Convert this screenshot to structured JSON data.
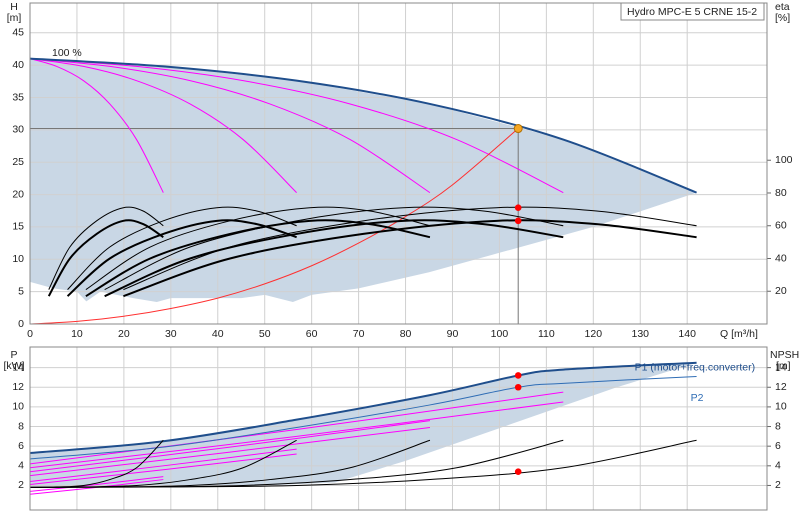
{
  "chart_data": [
    {
      "type": "line",
      "title": "Hydro MPC-E 5 CRNE 15-2",
      "ylabel": "H",
      "yunit": "[m]",
      "y2label": "eta",
      "y2unit": "[%]",
      "xlabel": "Q [m³/h]",
      "annotation": "100 %",
      "xlim": [
        0,
        157
      ],
      "xticks": [
        0,
        10,
        20,
        30,
        40,
        50,
        60,
        70,
        80,
        90,
        100,
        110,
        120,
        130,
        140
      ],
      "ylim": [
        0,
        49.6
      ],
      "yticks": [
        0,
        5,
        10,
        15,
        20,
        25,
        30,
        35,
        40,
        45
      ],
      "y2lim": [
        0,
        196
      ],
      "y2ticks": [
        20,
        40,
        60,
        80,
        100
      ],
      "grid": true,
      "areas": [
        {
          "color": "#c9d7e5",
          "x": [
            0,
            28.4,
            56.8,
            85.2,
            113.6,
            142,
            120,
            100,
            85,
            70,
            60,
            56,
            50,
            45,
            30,
            27,
            22,
            15,
            12,
            10,
            5,
            0
          ],
          "values": [
            41,
            39.8,
            37.6,
            34,
            28.5,
            20.3,
            15,
            11,
            8,
            5.5,
            4.5,
            3.4,
            4.5,
            4,
            4,
            3.4,
            4,
            5,
            3.5,
            5,
            5.5,
            6.5
          ]
        }
      ],
      "series": [
        {
          "color": "#ff00ff",
          "weight": "thin",
          "x": [
            0,
            5.7,
            11.4,
            17.0,
            22.7,
            28.4
          ],
          "values": [
            41,
            39.8,
            37.6,
            34,
            28.5,
            20.3
          ]
        },
        {
          "color": "#ff00ff",
          "weight": "thin",
          "x": [
            0,
            11.4,
            22.7,
            34.1,
            45.4,
            56.8
          ],
          "values": [
            41,
            39.8,
            37.6,
            34,
            28.5,
            20.3
          ]
        },
        {
          "color": "#ff00ff",
          "weight": "thin",
          "x": [
            0,
            17.0,
            34.1,
            51.1,
            68.2,
            85.2
          ],
          "values": [
            41,
            39.8,
            37.6,
            34,
            28.5,
            20.3
          ]
        },
        {
          "color": "#ff00ff",
          "weight": "thin",
          "x": [
            0,
            22.7,
            45.4,
            68.2,
            90.9,
            113.6
          ],
          "values": [
            41,
            39.8,
            37.6,
            34,
            28.5,
            20.3
          ]
        },
        {
          "color": "#1f4e8c",
          "weight": "bold",
          "x": [
            0,
            28.4,
            56.8,
            85.2,
            113.6,
            142
          ],
          "values": [
            41,
            39.8,
            37.6,
            34,
            28.5,
            20.3
          ]
        },
        {
          "color": "#ff3030",
          "weight": "thin",
          "x": [
            0,
            10,
            20,
            30,
            40,
            50,
            60,
            70,
            80,
            90,
            104
          ],
          "values": [
            0,
            0.4,
            1.2,
            2.4,
            4,
            6.2,
            9,
            12.5,
            16.6,
            21.5,
            30.2
          ]
        },
        {
          "color": "#000000",
          "weight": "thin",
          "axis": "y2",
          "x": [
            4.0,
            8.5,
            14.2,
            19.9,
            24.1,
            28.4
          ],
          "values": [
            21,
            47,
            63,
            71,
            69,
            60
          ]
        },
        {
          "color": "#000000",
          "weight": "thin",
          "axis": "y2",
          "x": [
            8.0,
            17.0,
            28.4,
            39.8,
            48.3,
            56.8
          ],
          "values": [
            21,
            47,
            63,
            71,
            69,
            60
          ]
        },
        {
          "color": "#000000",
          "weight": "thin",
          "axis": "y2",
          "x": [
            11.9,
            25.6,
            42.6,
            59.6,
            72.4,
            85.2
          ],
          "values": [
            21,
            47,
            63,
            71,
            69,
            60
          ]
        },
        {
          "color": "#000000",
          "weight": "thin",
          "axis": "y2",
          "x": [
            15.9,
            34.1,
            56.8,
            79.5,
            96.6,
            113.6
          ],
          "values": [
            21,
            47,
            63,
            71,
            69,
            60
          ]
        },
        {
          "color": "#000000",
          "weight": "thin",
          "axis": "y2",
          "x": [
            19.9,
            42.6,
            71.0,
            99.4,
            120.7,
            142
          ],
          "values": [
            21,
            47,
            63,
            71,
            69,
            60
          ]
        },
        {
          "color": "#000000",
          "weight": "bold",
          "axis": "y2",
          "x": [
            4.0,
            8.5,
            14.2,
            19.9,
            24.1,
            28.4
          ],
          "values": [
            17,
            40,
            55,
            63,
            61,
            53
          ]
        },
        {
          "color": "#000000",
          "weight": "bold",
          "axis": "y2",
          "x": [
            8.0,
            17.0,
            28.4,
            39.8,
            48.3,
            56.8
          ],
          "values": [
            17,
            40,
            55,
            63,
            61,
            53
          ]
        },
        {
          "color": "#000000",
          "weight": "bold",
          "axis": "y2",
          "x": [
            11.9,
            25.6,
            42.6,
            59.6,
            72.4,
            85.2
          ],
          "values": [
            17,
            40,
            55,
            63,
            61,
            53
          ]
        },
        {
          "color": "#000000",
          "weight": "bold",
          "axis": "y2",
          "x": [
            15.9,
            34.1,
            56.8,
            79.5,
            96.6,
            113.6
          ],
          "values": [
            17,
            40,
            55,
            63,
            61,
            53
          ]
        },
        {
          "color": "#000000",
          "weight": "bold",
          "axis": "y2",
          "x": [
            19.9,
            42.6,
            71.0,
            99.4,
            120.7,
            142
          ],
          "values": [
            17,
            40,
            55,
            63,
            61,
            53
          ]
        }
      ],
      "markers": [
        {
          "x": 104,
          "value": 30.2,
          "color": "#f5a623",
          "guide": true
        },
        {
          "x": 104,
          "value": 71,
          "color": "#ff0000",
          "axis": "y2"
        },
        {
          "x": 104,
          "value": 63,
          "color": "#ff0000",
          "axis": "y2"
        }
      ]
    },
    {
      "type": "line",
      "ylabel": "P",
      "yunit": "[kW]",
      "y2label": "NPSH",
      "y2unit": "[m]",
      "ylim": [
        -0.5,
        16.1
      ],
      "yticks": [
        2,
        4,
        6,
        8,
        10,
        12,
        14
      ],
      "y2lim": [
        -0.5,
        16.1
      ],
      "y2ticks": [
        2,
        4,
        6,
        8,
        10,
        12,
        14
      ],
      "grid": true,
      "areas": [
        {
          "color": "#c9d7e5",
          "x": [
            0,
            28.4,
            56.8,
            85.2,
            104,
            113.6,
            142,
            125,
            110,
            95,
            80,
            65,
            50,
            0
          ],
          "values": [
            5.3,
            6.5,
            8.7,
            11.2,
            13.2,
            13.8,
            14.5,
            12,
            9.5,
            7,
            4.5,
            2.3,
            2,
            1.9
          ]
        }
      ],
      "series": [
        {
          "color": "#ff00ff",
          "weight": "thin",
          "x": [
            0,
            14.2,
            28.4
          ],
          "values": [
            1.4,
            2.1,
            2.9
          ]
        },
        {
          "color": "#ff00ff",
          "weight": "thin",
          "x": [
            0,
            14.2,
            28.4
          ],
          "values": [
            1.1,
            1.8,
            2.6
          ]
        },
        {
          "color": "#ff00ff",
          "weight": "thin",
          "x": [
            0,
            28.4,
            56.8
          ],
          "values": [
            2.4,
            4.0,
            5.7
          ]
        },
        {
          "color": "#ff00ff",
          "weight": "thin",
          "x": [
            0,
            28.4,
            56.8
          ],
          "values": [
            2.1,
            3.6,
            5.2
          ]
        },
        {
          "color": "#ff00ff",
          "weight": "thin",
          "x": [
            0,
            42.6,
            85.2
          ],
          "values": [
            3.4,
            5.9,
            8.6
          ]
        },
        {
          "color": "#ff00ff",
          "weight": "thin",
          "x": [
            0,
            42.6,
            85.2
          ],
          "values": [
            3.0,
            5.4,
            7.9
          ]
        },
        {
          "color": "#ff00ff",
          "weight": "thin",
          "x": [
            0,
            56.8,
            113.6
          ],
          "values": [
            4.2,
            7.7,
            11.5
          ]
        },
        {
          "color": "#ff00ff",
          "weight": "thin",
          "x": [
            0,
            56.8,
            113.6
          ],
          "values": [
            3.8,
            7.0,
            10.5
          ]
        },
        {
          "name": "P1 (motor+freq.converter)",
          "color": "#1f4e8c",
          "weight": "bold",
          "x": [
            0,
            28.4,
            56.8,
            85.2,
            104,
            113.6,
            142
          ],
          "values": [
            5.3,
            6.5,
            8.7,
            11.2,
            13.2,
            13.8,
            14.5
          ]
        },
        {
          "name": "P2",
          "color": "#2f6db5",
          "weight": "thin",
          "x": [
            0,
            28.4,
            56.8,
            85.2,
            104,
            113.6,
            142
          ],
          "values": [
            4.7,
            5.9,
            7.9,
            10.2,
            12.0,
            12.4,
            13.1
          ]
        },
        {
          "color": "#000000",
          "weight": "thin",
          "axis": "y2",
          "x": [
            0,
            5.7,
            11.4,
            17.0,
            22.7,
            28.4
          ],
          "values": [
            1.8,
            1.85,
            2.0,
            2.6,
            3.8,
            6.6
          ]
        },
        {
          "color": "#000000",
          "weight": "thin",
          "axis": "y2",
          "x": [
            0,
            11.4,
            22.7,
            34.1,
            45.4,
            56.8
          ],
          "values": [
            1.8,
            1.85,
            2.0,
            2.6,
            3.8,
            6.6
          ]
        },
        {
          "color": "#000000",
          "weight": "thin",
          "axis": "y2",
          "x": [
            0,
            17.0,
            34.1,
            51.1,
            68.2,
            85.2
          ],
          "values": [
            1.8,
            1.85,
            2.0,
            2.6,
            3.8,
            6.6
          ]
        },
        {
          "color": "#000000",
          "weight": "thin",
          "axis": "y2",
          "x": [
            0,
            22.7,
            45.4,
            68.2,
            90.9,
            113.6
          ],
          "values": [
            1.8,
            1.85,
            2.0,
            2.6,
            3.8,
            6.6
          ]
        },
        {
          "color": "#000000",
          "weight": "thin",
          "axis": "y2",
          "x": [
            0,
            28.4,
            56.8,
            85.2,
            113.6,
            142
          ],
          "values": [
            1.8,
            1.85,
            2.0,
            2.6,
            3.8,
            6.6
          ]
        }
      ],
      "markers": [
        {
          "x": 104,
          "value": 13.2,
          "color": "#ff0000"
        },
        {
          "x": 104,
          "value": 12.0,
          "color": "#ff0000"
        },
        {
          "x": 104,
          "value": 3.4,
          "color": "#ff0000",
          "axis": "y2"
        }
      ]
    }
  ]
}
